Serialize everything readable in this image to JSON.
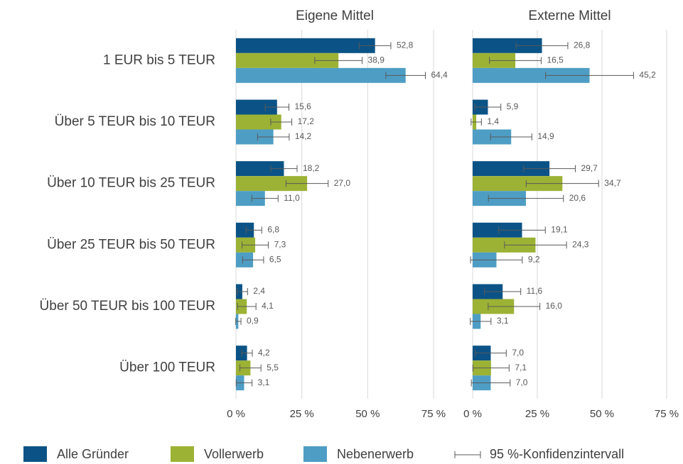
{
  "chart_data": {
    "type": "bar",
    "orientation": "horizontal",
    "categories": [
      "1 EUR bis 5 TEUR",
      "Über 5 TEUR bis 10 TEUR",
      "Über 10 TEUR bis 25 TEUR",
      "Über 25 TEUR bis 50 TEUR",
      "Über 50 TEUR bis 100 TEUR",
      "Über 100 TEUR"
    ],
    "series": [
      {
        "name": "Alle Gründer",
        "color": "#0b5386"
      },
      {
        "name": "Vollerwerb",
        "color": "#9cb235"
      },
      {
        "name": "Nebenerwerb",
        "color": "#4e9dc4"
      }
    ],
    "error_label": "95 %-Konfidenzintervall",
    "xlim": [
      0,
      75
    ],
    "xticks": [
      {
        "value": 0,
        "label": "0 %"
      },
      {
        "value": 25,
        "label": "25 %"
      },
      {
        "value": 50,
        "label": "50 %"
      },
      {
        "value": 75,
        "label": "75 %"
      }
    ],
    "grid": true,
    "panels": [
      {
        "title": "Eigene Mittel",
        "values": [
          [
            52.8,
            15.6,
            18.2,
            6.8,
            2.4,
            4.2
          ],
          [
            38.9,
            17.2,
            27.0,
            7.3,
            4.1,
            5.5
          ],
          [
            64.4,
            14.2,
            11.0,
            6.5,
            0.9,
            3.1
          ]
        ],
        "value_labels": [
          [
            "52,8",
            "15,6",
            "18,2",
            "6,8",
            "2,4",
            "4,2"
          ],
          [
            "38,9",
            "17,2",
            "27,0",
            "7,3",
            "4,1",
            "5,5"
          ],
          [
            "64,4",
            "14,2",
            "11,0",
            "6,5",
            "0,9",
            "3,1"
          ]
        ],
        "errors": [
          [
            6,
            4.5,
            5,
            3,
            2,
            2
          ],
          [
            9,
            4,
            8,
            5,
            3.5,
            4
          ],
          [
            7.5,
            6,
            5,
            4,
            1,
            3
          ]
        ]
      },
      {
        "title": "Externe Mittel",
        "values": [
          [
            26.8,
            5.9,
            29.7,
            19.1,
            11.6,
            7.0
          ],
          [
            16.5,
            1.4,
            34.7,
            24.3,
            16.0,
            7.1
          ],
          [
            45.2,
            14.9,
            20.6,
            9.2,
            3.1,
            7.0
          ]
        ],
        "value_labels": [
          [
            "26,8",
            "5,9",
            "29,7",
            "19,1",
            "11,6",
            "7,0"
          ],
          [
            "16,5",
            "1,4",
            "34,7",
            "24,3",
            "16,0",
            "7,1"
          ],
          [
            "45,2",
            "14,9",
            "20,6",
            "9,2",
            "3,1",
            "7,0"
          ]
        ],
        "errors": [
          [
            10,
            5,
            10,
            9,
            7,
            6
          ],
          [
            10,
            2,
            14,
            12,
            10,
            7
          ],
          [
            17,
            8,
            14.5,
            10,
            4,
            7.5
          ]
        ]
      }
    ]
  }
}
